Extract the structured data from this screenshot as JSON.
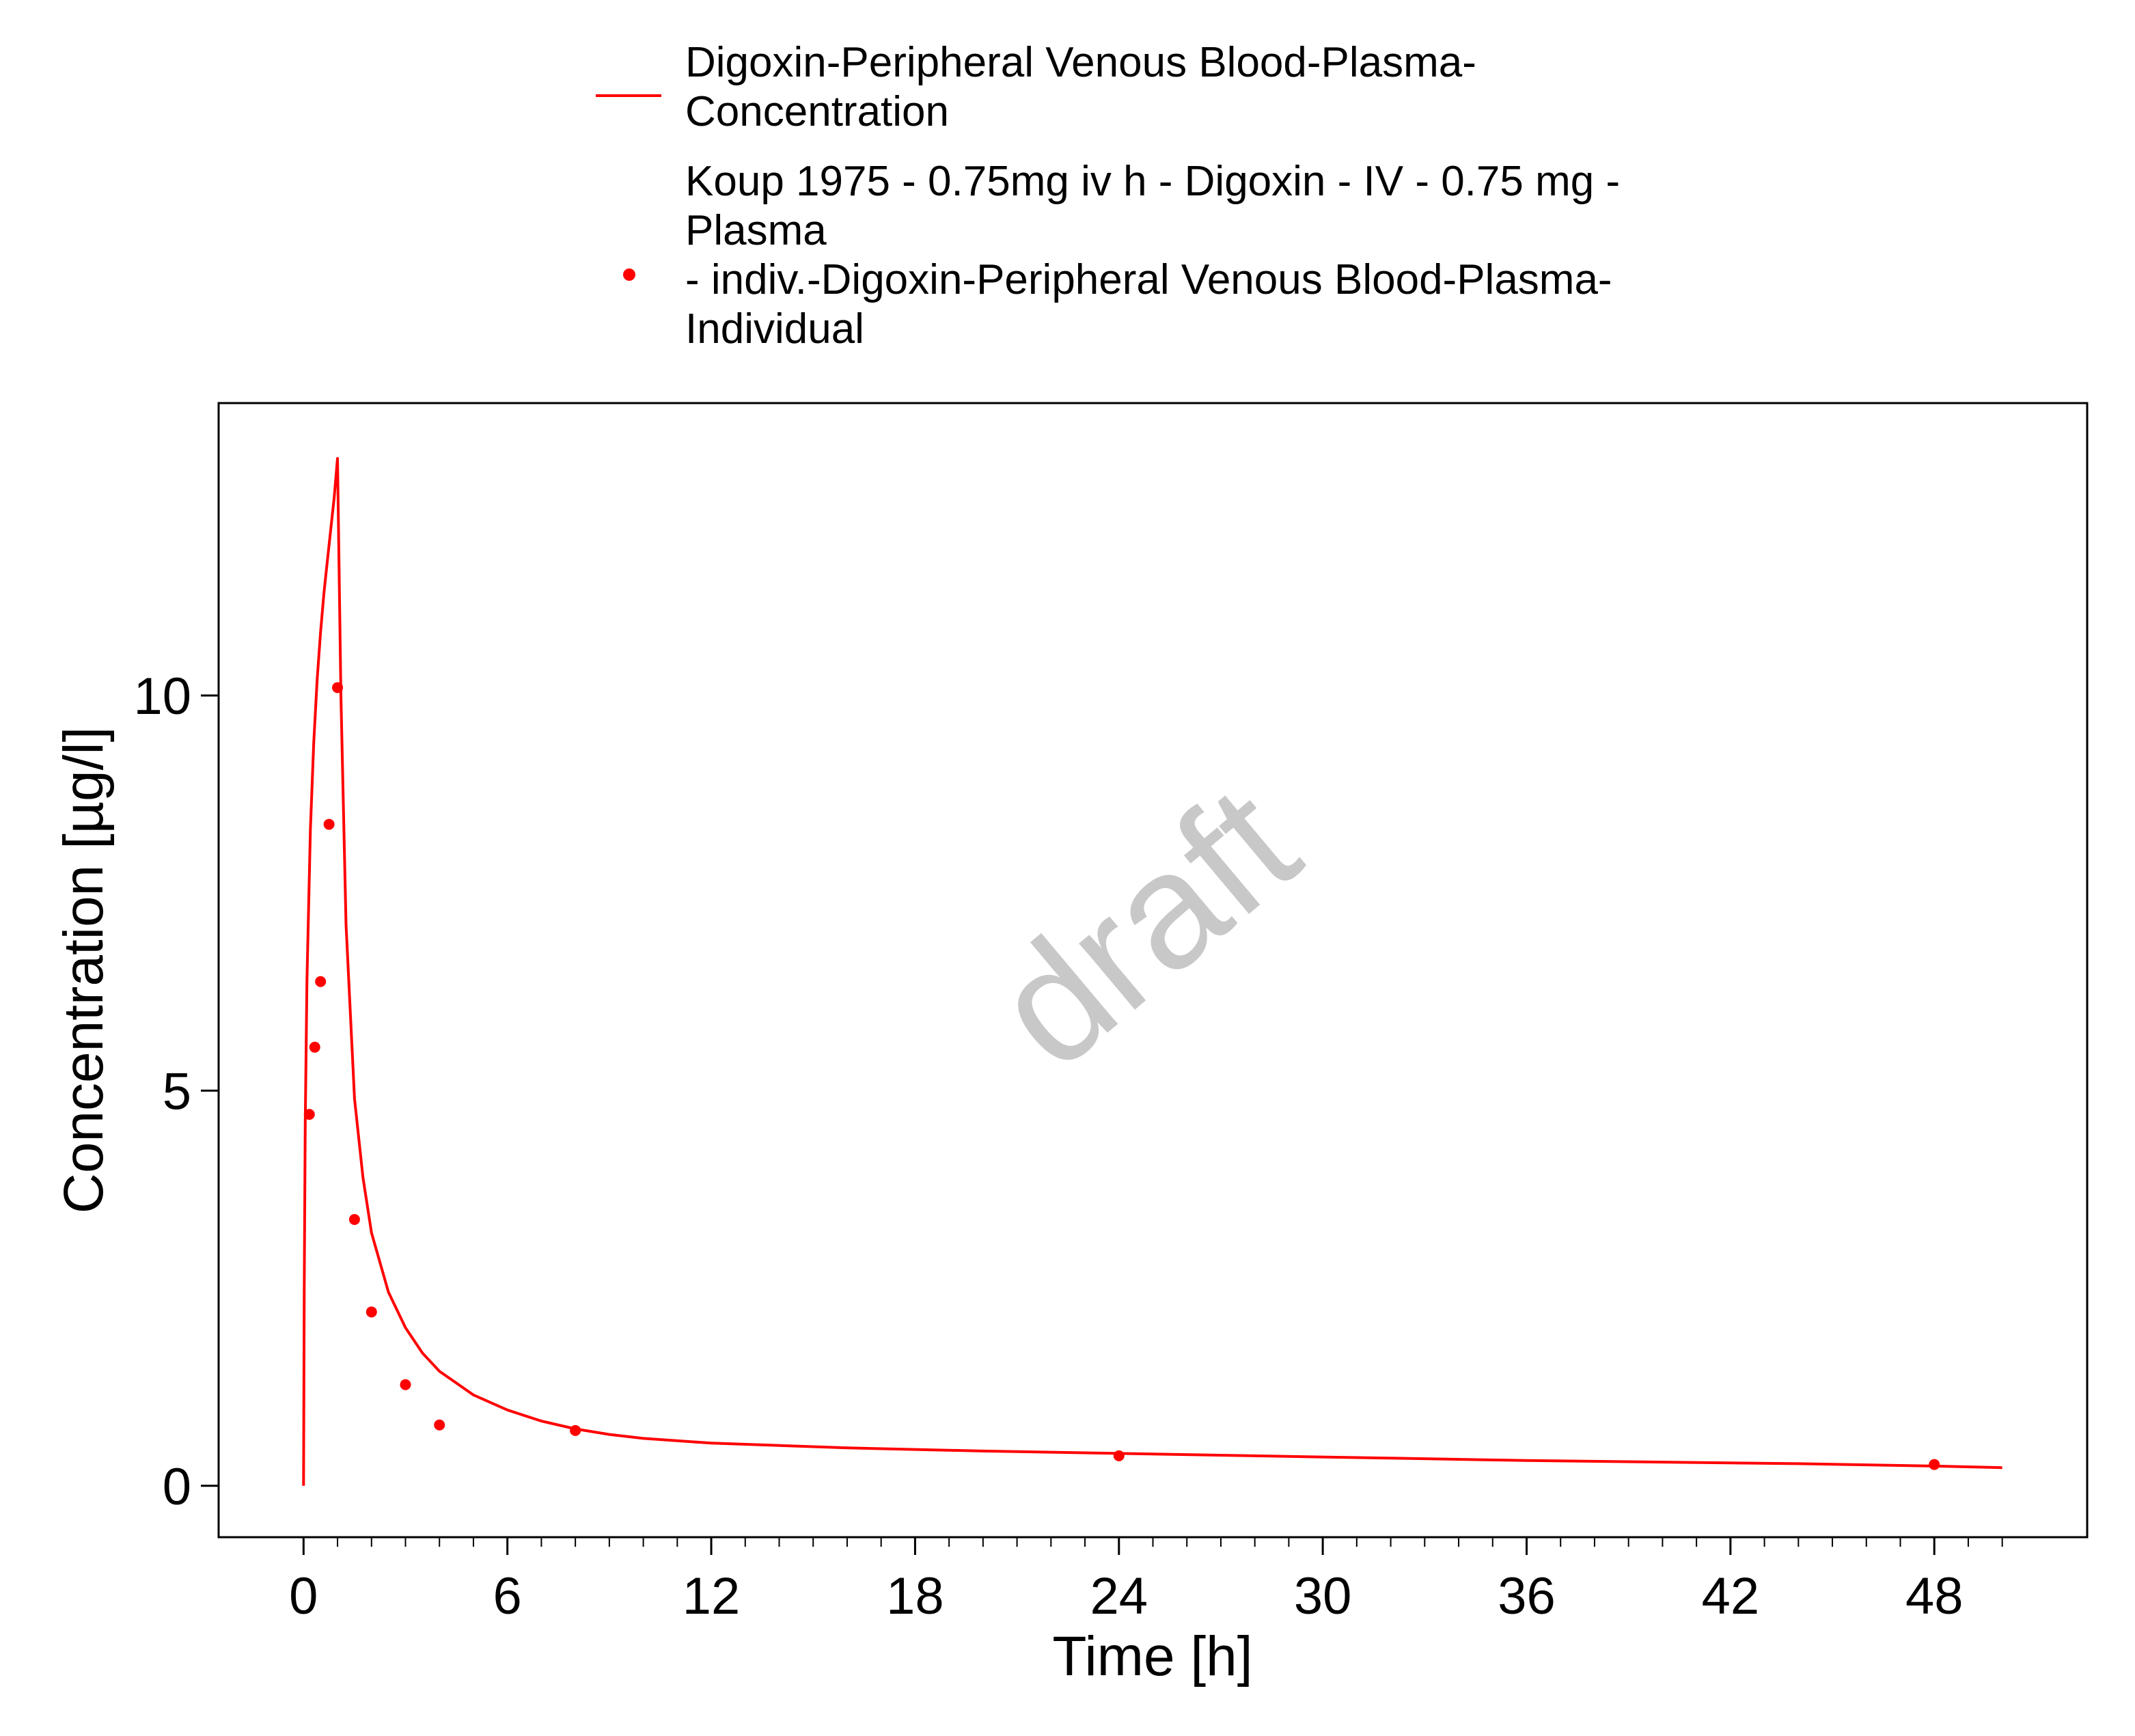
{
  "chart_data": {
    "type": "line",
    "title": "",
    "xlabel": "Time [h]",
    "ylabel": "Concentration [µg/l]",
    "xlim": [
      -2.5,
      52.5
    ],
    "ylim": [
      -0.65,
      13.7
    ],
    "x_ticks": [
      0,
      6,
      12,
      18,
      24,
      30,
      36,
      42,
      48
    ],
    "x_tick_labels": [
      "0",
      "6",
      "12",
      "18",
      "24",
      "30",
      "36",
      "42",
      "48"
    ],
    "x_minor_step": 1,
    "y_ticks": [
      0,
      5,
      10
    ],
    "y_tick_labels": [
      "0",
      "5",
      "10"
    ],
    "grid": false,
    "legend_position": "top",
    "watermark": "draft",
    "colors": {
      "series": "#ff0000",
      "axis": "#000000",
      "watermark": "#c8c8c8"
    },
    "legend": [
      {
        "marker": "line",
        "lines": [
          "Digoxin-Peripheral Venous Blood-Plasma-",
          "Concentration"
        ]
      },
      {
        "marker": "point",
        "lines": [
          "Koup 1975 - 0.75mg iv h - Digoxin - IV - 0.75 mg -",
          "Plasma",
          "- indiv.-Digoxin-Peripheral Venous Blood-Plasma-",
          "Individual"
        ]
      }
    ],
    "series": [
      {
        "name": "Digoxin-Peripheral Venous Blood-Plasma-Concentration",
        "kind": "line",
        "x": [
          0,
          0.02,
          0.05,
          0.1,
          0.2,
          0.3,
          0.4,
          0.5,
          0.6,
          0.7,
          0.8,
          0.9,
          1.0,
          1.1,
          1.25,
          1.5,
          1.75,
          2.0,
          2.5,
          3.0,
          3.5,
          4.0,
          5.0,
          6.0,
          7.0,
          8.0,
          9.0,
          10.0,
          12.0,
          14.0,
          16.0,
          20.0,
          24.0,
          28.0,
          32.0,
          36.0,
          40.0,
          44.0,
          48.0,
          50.0
        ],
        "y": [
          0,
          2.5,
          4.6,
          6.4,
          8.3,
          9.4,
          10.2,
          10.8,
          11.3,
          11.7,
          12.1,
          12.5,
          13.0,
          10.0,
          7.1,
          4.9,
          3.9,
          3.2,
          2.45,
          2.0,
          1.68,
          1.45,
          1.15,
          0.96,
          0.82,
          0.72,
          0.65,
          0.6,
          0.54,
          0.51,
          0.48,
          0.44,
          0.41,
          0.38,
          0.35,
          0.32,
          0.3,
          0.28,
          0.25,
          0.23
        ]
      },
      {
        "name": "Koup 1975 - 0.75mg iv h - Digoxin - IV - 0.75 mg - Plasma - indiv.-Digoxin-Peripheral Venous Blood-Plasma-Individual",
        "kind": "scatter",
        "x": [
          0.17,
          0.33,
          0.5,
          0.75,
          1.0,
          1.5,
          2.0,
          3.0,
          4.0,
          8.0,
          24.0,
          48.0
        ],
        "y": [
          4.7,
          5.55,
          6.38,
          8.37,
          10.1,
          3.37,
          2.2,
          1.28,
          0.77,
          0.7,
          0.38,
          0.27
        ]
      }
    ]
  }
}
